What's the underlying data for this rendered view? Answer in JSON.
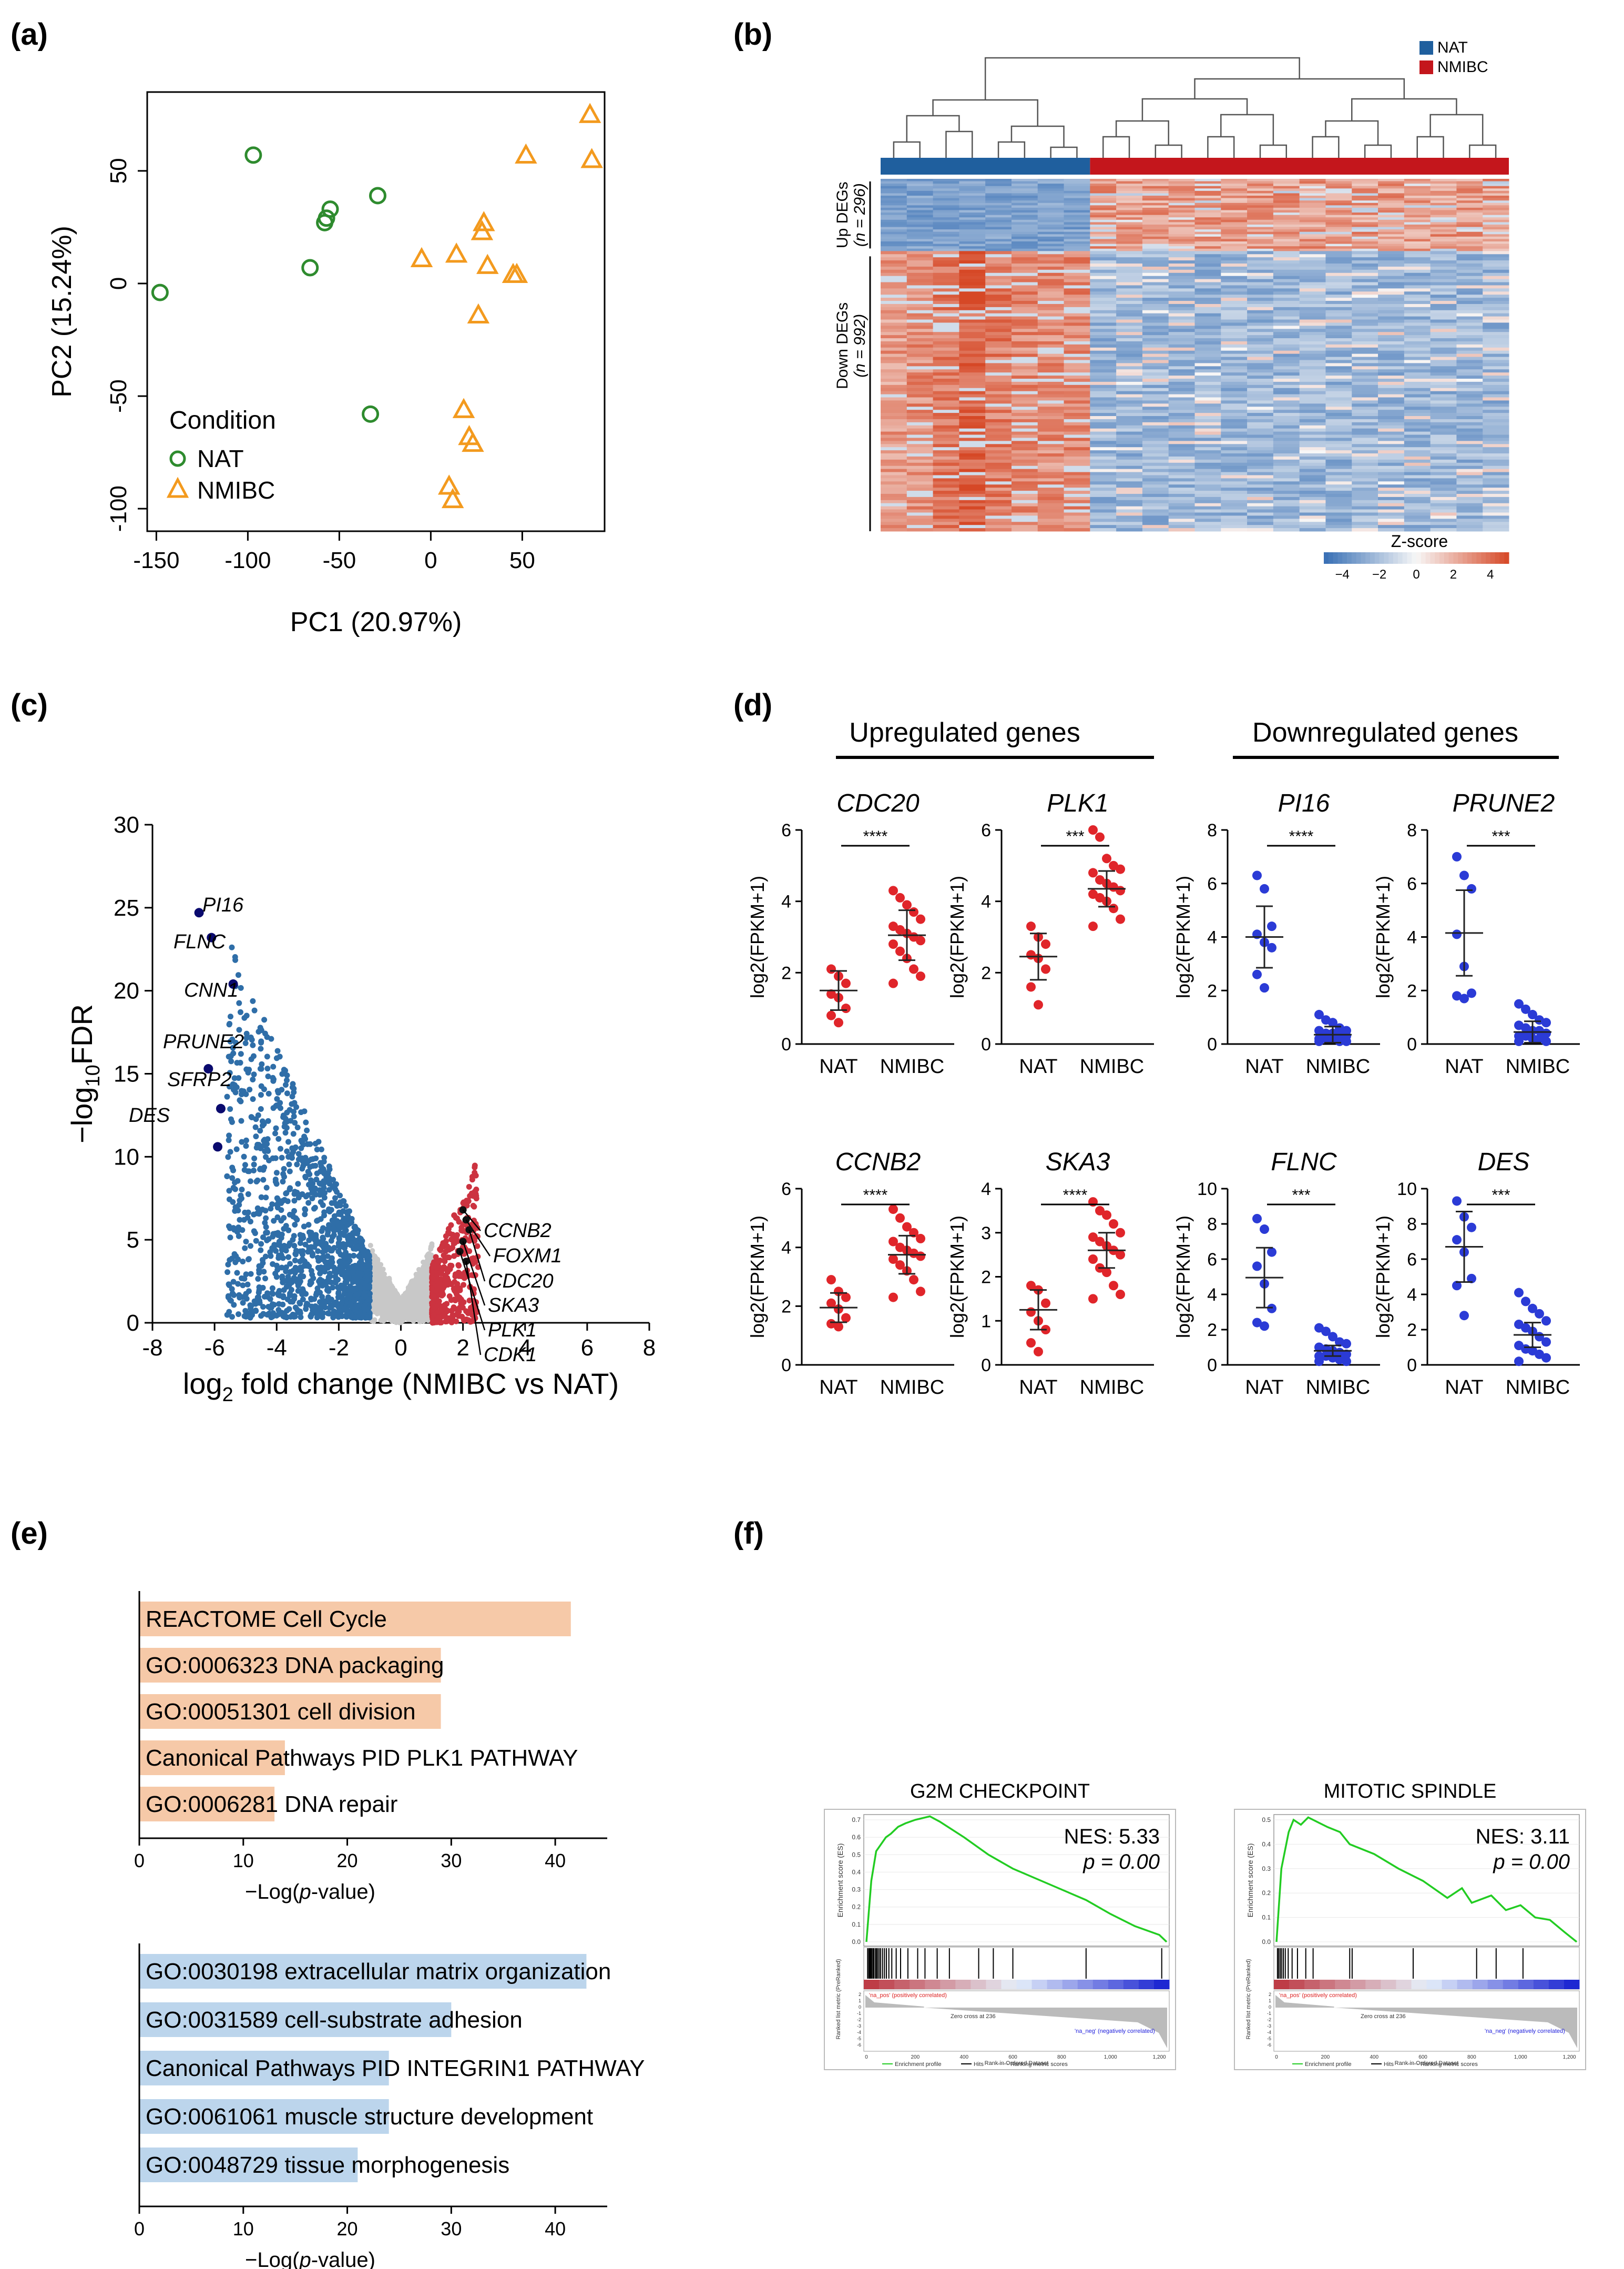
{
  "panels": {
    "a": "(a)",
    "b": "(b)",
    "c": "(c)",
    "d": "(d)",
    "e": "(e)",
    "f": "(f)"
  },
  "colors": {
    "nat_green": "#2e8b2e",
    "nmibc_orange": "#f39a1e",
    "nat_blue": "#1f5f9e",
    "nmibc_red": "#c4161c",
    "volcano_down": "#2f6ea8",
    "volcano_up": "#cc3340",
    "volcano_ns": "#c8c8c8",
    "highlight": "#0a0a6e",
    "up_red": "#e0252a",
    "down_blue": "#2b3bd6",
    "bar_orange": "#f6c9a8",
    "bar_blue": "#bcd5ec",
    "gsea_green": "#22cc22"
  },
  "chart_data": [
    {
      "panel": "a",
      "type": "scatter",
      "xlabel": "PC1 (20.97%)",
      "ylabel": "PC2 (15.24%)",
      "xlim": [
        -155,
        95
      ],
      "ylim": [
        -110,
        85
      ],
      "xticks": [
        -150,
        -100,
        -50,
        0,
        50
      ],
      "yticks": [
        -100,
        -50,
        0,
        50
      ],
      "legend": {
        "title": "Condition",
        "position": "bottom-left"
      },
      "series": [
        {
          "name": "NAT",
          "marker": "circle",
          "points": [
            [
              -148,
              -4
            ],
            [
              -97,
              57
            ],
            [
              -66,
              7
            ],
            [
              -58,
              27
            ],
            [
              -57,
              29
            ],
            [
              -55,
              33
            ],
            [
              -33,
              -58
            ],
            [
              -29,
              39
            ]
          ]
        },
        {
          "name": "NMIBC",
          "marker": "triangle",
          "points": [
            [
              -5,
              11
            ],
            [
              10,
              -90
            ],
            [
              12,
              -96
            ],
            [
              14,
              13
            ],
            [
              18,
              -56
            ],
            [
              21,
              -68
            ],
            [
              23,
              -71
            ],
            [
              26,
              -14
            ],
            [
              28,
              23
            ],
            [
              29,
              27
            ],
            [
              31,
              8
            ],
            [
              45,
              4
            ],
            [
              47,
              4
            ],
            [
              52,
              57
            ],
            [
              87,
              75
            ],
            [
              88,
              55
            ]
          ]
        }
      ]
    },
    {
      "panel": "b",
      "type": "heatmap",
      "legend": [
        "NAT",
        "NMIBC"
      ],
      "row_groups": [
        {
          "label": "Up DEGs",
          "n": "(n = 296)"
        },
        {
          "label": "Down DEGs",
          "n": "(n = 992)"
        }
      ],
      "columns": {
        "NAT": 8,
        "NMIBC": 16
      },
      "colorbar": {
        "title": "Z-score",
        "ticks": [
          -4,
          -2,
          0,
          2,
          4
        ]
      }
    },
    {
      "panel": "c",
      "type": "scatter",
      "xlabel_main": "log",
      "xlabel_sub": "2",
      "xlabel_rest": " fold change (NMIBC vs NAT)",
      "ylabel_pre": "−log",
      "ylabel_sub": "10",
      "ylabel_post": "FDR",
      "xlim": [
        -8,
        8
      ],
      "ylim": [
        0,
        30
      ],
      "xticks": [
        -8,
        -6,
        -4,
        -2,
        0,
        2,
        4,
        6,
        8
      ],
      "yticks": [
        0,
        5,
        10,
        15,
        20,
        25,
        30
      ],
      "labeled_down": [
        {
          "gene": "PI16",
          "x": -6.5,
          "y": 24.7
        },
        {
          "gene": "FLNC",
          "x": -6.1,
          "y": 23.2
        },
        {
          "gene": "CNN1",
          "x": -5.4,
          "y": 20.4
        },
        {
          "gene": "PRUNE2",
          "x": -6.2,
          "y": 15.3
        },
        {
          "gene": "SFRP2",
          "x": -5.8,
          "y": 12.9
        },
        {
          "gene": "DES",
          "x": -5.9,
          "y": 10.6
        }
      ],
      "labeled_up": [
        {
          "gene": "CCNB2",
          "x": 2.0,
          "y": 6.8
        },
        {
          "gene": "FOXM1",
          "x": 2.1,
          "y": 6.2
        },
        {
          "gene": "CDC20",
          "x": 2.2,
          "y": 5.6
        },
        {
          "gene": "SKA3",
          "x": 2.0,
          "y": 4.9
        },
        {
          "gene": "PLK1",
          "x": 1.9,
          "y": 4.3
        },
        {
          "gene": "CDK1",
          "x": 2.1,
          "y": 3.7
        }
      ]
    },
    {
      "panel": "d",
      "type": "scatter",
      "group_titles": {
        "up": "Upregulated genes",
        "down": "Downregulated genes"
      },
      "ylabel": "log2(FPKM+1)",
      "categories": [
        "NAT",
        "NMIBC"
      ],
      "plots": [
        {
          "gene": "CDC20",
          "group": "up",
          "ylim": [
            0,
            6
          ],
          "yticks": [
            0,
            2,
            4,
            6
          ],
          "sig": "****",
          "nat": [
            2.1,
            1.9,
            1.7,
            1.4,
            1.3,
            1.0,
            0.8,
            0.6
          ],
          "nmibc": [
            4.3,
            4.1,
            3.9,
            3.7,
            3.5,
            3.3,
            3.2,
            3.1,
            3.0,
            2.9,
            2.8,
            2.6,
            2.4,
            2.1,
            1.9,
            1.7
          ],
          "nat_mean": 1.5,
          "nat_sd": 0.55,
          "nmibc_mean": 3.05,
          "nmibc_sd": 0.7
        },
        {
          "gene": "PLK1",
          "group": "up",
          "ylim": [
            0,
            6
          ],
          "yticks": [
            0,
            2,
            4,
            6
          ],
          "sig": "***",
          "nat": [
            3.3,
            3.0,
            2.8,
            2.5,
            2.4,
            2.1,
            1.6,
            1.1
          ],
          "nmibc": [
            6.0,
            5.8,
            5.2,
            5.0,
            4.9,
            4.8,
            4.6,
            4.5,
            4.4,
            4.3,
            4.2,
            4.1,
            4.0,
            3.8,
            3.5,
            3.3
          ],
          "nat_mean": 2.45,
          "nat_sd": 0.65,
          "nmibc_mean": 4.35,
          "nmibc_sd": 0.5
        },
        {
          "gene": "PI16",
          "group": "down",
          "ylim": [
            0,
            8
          ],
          "yticks": [
            0,
            2,
            4,
            6,
            8
          ],
          "sig": "****",
          "nat": [
            6.3,
            5.8,
            4.4,
            4.1,
            3.8,
            3.6,
            2.6,
            2.1
          ],
          "nmibc": [
            1.1,
            0.9,
            0.8,
            0.6,
            0.5,
            0.5,
            0.4,
            0.4,
            0.3,
            0.3,
            0.2,
            0.2,
            0.2,
            0.1,
            0.1,
            0.1
          ],
          "nat_mean": 4.0,
          "nat_sd": 1.15,
          "nmibc_mean": 0.35,
          "nmibc_sd": 0.3
        },
        {
          "gene": "PRUNE2",
          "group": "down",
          "ylim": [
            0,
            8
          ],
          "yticks": [
            0,
            2,
            4,
            6,
            8
          ],
          "sig": "***",
          "nat": [
            7.0,
            6.3,
            5.8,
            4.1,
            2.9,
            1.9,
            1.8,
            1.7
          ],
          "nmibc": [
            1.5,
            1.3,
            1.1,
            0.9,
            0.8,
            0.7,
            0.6,
            0.5,
            0.5,
            0.4,
            0.3,
            0.3,
            0.2,
            0.2,
            0.1,
            0.1
          ],
          "nat_mean": 4.15,
          "nat_sd": 1.6,
          "nmibc_mean": 0.45,
          "nmibc_sd": 0.4
        },
        {
          "gene": "CCNB2",
          "group": "up",
          "ylim": [
            0,
            6
          ],
          "yticks": [
            0,
            2,
            4,
            6
          ],
          "sig": "****",
          "nat": [
            2.9,
            2.5,
            2.3,
            2.1,
            1.9,
            1.6,
            1.4,
            1.3
          ],
          "nmibc": [
            5.3,
            5.0,
            4.7,
            4.5,
            4.3,
            4.2,
            4.0,
            3.9,
            3.8,
            3.7,
            3.6,
            3.4,
            3.2,
            2.9,
            2.5,
            2.3
          ],
          "nat_mean": 1.95,
          "nat_sd": 0.5,
          "nmibc_mean": 3.75,
          "nmibc_sd": 0.65
        },
        {
          "gene": "SKA3",
          "group": "up",
          "ylim": [
            0,
            4
          ],
          "yticks": [
            0,
            1,
            2,
            3,
            4
          ],
          "sig": "****",
          "nat": [
            1.8,
            1.7,
            1.4,
            1.2,
            1.0,
            0.8,
            0.5,
            0.3
          ],
          "nmibc": [
            3.7,
            3.5,
            3.4,
            3.2,
            3.0,
            2.9,
            2.8,
            2.7,
            2.6,
            2.5,
            2.4,
            2.2,
            2.1,
            1.8,
            1.6,
            1.5
          ],
          "nat_mean": 1.25,
          "nat_sd": 0.45,
          "nmibc_mean": 2.6,
          "nmibc_sd": 0.4
        },
        {
          "gene": "FLNC",
          "group": "down",
          "ylim": [
            0,
            10
          ],
          "yticks": [
            0,
            2,
            4,
            6,
            8,
            10
          ],
          "sig": "***",
          "nat": [
            8.3,
            7.7,
            6.4,
            5.6,
            4.6,
            3.2,
            2.4,
            2.2
          ],
          "nmibc": [
            2.1,
            1.9,
            1.6,
            1.3,
            1.2,
            1.0,
            0.9,
            0.8,
            0.7,
            0.6,
            0.5,
            0.5,
            0.4,
            0.3,
            0.2,
            0.2
          ],
          "nat_mean": 4.95,
          "nat_sd": 1.7,
          "nmibc_mean": 0.8,
          "nmibc_sd": 0.3
        },
        {
          "gene": "DES",
          "group": "down",
          "ylim": [
            0,
            10
          ],
          "yticks": [
            0,
            2,
            4,
            6,
            8,
            10
          ],
          "sig": "***",
          "nat": [
            9.3,
            8.4,
            7.8,
            7.1,
            6.4,
            4.9,
            4.5,
            2.8
          ],
          "nmibc": [
            4.1,
            3.6,
            3.2,
            2.9,
            2.5,
            2.3,
            2.1,
            1.9,
            1.6,
            1.3,
            1.1,
            0.9,
            0.8,
            0.6,
            0.4,
            0.2
          ],
          "nat_mean": 6.7,
          "nat_sd": 2.0,
          "nmibc_mean": 1.7,
          "nmibc_sd": 0.7
        }
      ]
    },
    {
      "panel": "e",
      "type": "bar",
      "orientation": "horizontal",
      "xlabel": "−Log(p-value)",
      "xlim": [
        0,
        45
      ],
      "xticks": [
        0,
        10,
        20,
        30,
        40
      ],
      "groups": [
        {
          "name": "up",
          "categories": [
            "REACTOME Cell Cycle",
            "GO:0006323 DNA packaging",
            "GO:00051301 cell division",
            "Canonical Pathways PID PLK1 PATHWAY",
            "GO:0006281 DNA repair"
          ],
          "values": [
            41.5,
            29,
            29,
            14,
            13
          ]
        },
        {
          "name": "down",
          "categories": [
            "GO:0030198 extracellular matrix organization",
            "GO:0031589 cell-substrate adhesion",
            "Canonical Pathways PID INTEGRIN1 PATHWAY",
            "GO:0061061 muscle structure development",
            "GO:0048729 tissue morphogenesis"
          ],
          "values": [
            43,
            30,
            24,
            24,
            21
          ]
        }
      ]
    },
    {
      "panel": "f",
      "type": "line",
      "plots": [
        {
          "title": "G2M CHECKPOINT",
          "nes": "NES: 5.33",
          "p": "p = 0.00",
          "yticks": [
            "0.7",
            "0.6",
            "0.5",
            "0.4",
            "0.3",
            "0.2",
            "0.1",
            "0.0"
          ],
          "es": [
            [
              0,
              0
            ],
            [
              20,
              0.35
            ],
            [
              40,
              0.52
            ],
            [
              60,
              0.56
            ],
            [
              80,
              0.6
            ],
            [
              100,
              0.62
            ],
            [
              130,
              0.66
            ],
            [
              160,
              0.68
            ],
            [
              200,
              0.7
            ],
            [
              230,
              0.71
            ],
            [
              260,
              0.72
            ],
            [
              300,
              0.69
            ],
            [
              400,
              0.6
            ],
            [
              500,
              0.5
            ],
            [
              600,
              0.42
            ],
            [
              700,
              0.36
            ],
            [
              800,
              0.3
            ],
            [
              900,
              0.24
            ],
            [
              1000,
              0.16
            ],
            [
              1100,
              0.09
            ],
            [
              1200,
              0.04
            ],
            [
              1230,
              0.0
            ]
          ]
        },
        {
          "title": "MITOTIC SPINDLE",
          "nes": "NES: 3.11",
          "p": "p = 0.00",
          "yticks": [
            "0.5",
            "0.4",
            "0.3",
            "0.2",
            "0.1",
            "0.0"
          ],
          "es": [
            [
              0,
              0
            ],
            [
              20,
              0.3
            ],
            [
              50,
              0.45
            ],
            [
              70,
              0.5
            ],
            [
              100,
              0.48
            ],
            [
              130,
              0.51
            ],
            [
              170,
              0.49
            ],
            [
              210,
              0.47
            ],
            [
              260,
              0.45
            ],
            [
              300,
              0.4
            ],
            [
              400,
              0.36
            ],
            [
              500,
              0.3
            ],
            [
              600,
              0.25
            ],
            [
              700,
              0.18
            ],
            [
              760,
              0.22
            ],
            [
              800,
              0.16
            ],
            [
              880,
              0.19
            ],
            [
              940,
              0.13
            ],
            [
              1000,
              0.15
            ],
            [
              1060,
              0.1
            ],
            [
              1120,
              0.09
            ],
            [
              1180,
              0.04
            ],
            [
              1230,
              0.0
            ]
          ]
        }
      ],
      "small_text": {
        "ylabel_es": "Enrichment score (ES)",
        "ylabel_rank": "Ranked list metric (PreRanked)",
        "xlabel": "Rank in Ordered Dataset",
        "pos": "'na_pos' (positively correlated)",
        "neg": "'na_neg' (negatively correlated)",
        "zero": "Zero cross at 236",
        "legend": [
          "Enrichment profile",
          "Hits",
          "Ranking metric scores"
        ],
        "xticks": [
          "0",
          "200",
          "400",
          "600",
          "800",
          "1,000",
          "1,200"
        ],
        "rank_ticks": [
          "2",
          "1",
          "0",
          "-1",
          "-2",
          "-3",
          "-4",
          "-5",
          "-6"
        ]
      }
    }
  ]
}
